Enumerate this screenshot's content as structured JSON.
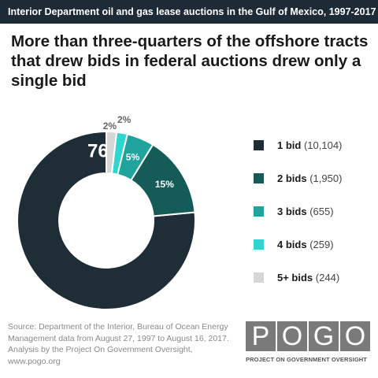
{
  "header": {
    "topbar": "Interior Department oil and gas lease auctions in the Gulf of Mexico, 1997-2017",
    "headline": "More than three-quarters of the offshore tracts that drew bids in federal auctions drew only a single bid"
  },
  "chart_data": {
    "type": "pie",
    "title": "More than three-quarters of the offshore tracts that drew bids in federal auctions drew only a single bid",
    "slices": [
      {
        "label": "1 bid",
        "count_text": "(10,104)",
        "value": 10104,
        "percent_label": "76%",
        "color": "#1e2d36"
      },
      {
        "label": "2 bids",
        "count_text": "(1,950)",
        "value": 1950,
        "percent_label": "15%",
        "color": "#155c58"
      },
      {
        "label": "3 bids",
        "count_text": "(655)",
        "value": 655,
        "percent_label": "5%",
        "color": "#20a39c"
      },
      {
        "label": "4 bids",
        "count_text": "(259)",
        "value": 259,
        "percent_label": "2%",
        "color": "#2fd6d0"
      },
      {
        "label": "5+ bids",
        "count_text": "(244)",
        "value": 244,
        "percent_label": "2%",
        "color": "#d6d6d6"
      }
    ],
    "legend": "right"
  },
  "source": "Source: Department of the Interior, Bureau of Ocean Energy Management data from August 27, 1997 to August 16, 2017. Analysis by the Project On Government Oversight, www.pogo.org",
  "logo": {
    "letters": [
      "P",
      "O",
      "G",
      "O"
    ],
    "subtitle": "PROJECT ON GOVERNMENT OVERSIGHT",
    "color": "#7a7a7a"
  }
}
